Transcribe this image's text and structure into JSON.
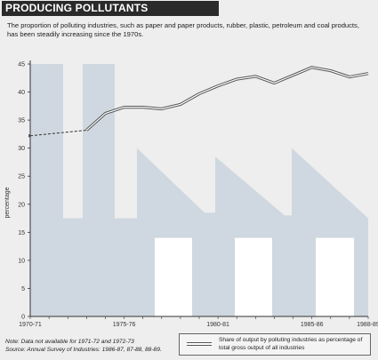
{
  "title": "PRODUCING POLLUTANTS",
  "subtitle": "The proportion of polluting industries, such as paper and paper products, rubber, plastic, petroleum and coal products, has been steadily increasing since the 1970s.",
  "note_lines": [
    "Note: Data not available for 1971-72 and 1972-73",
    "Source: Annual Survey of Industries: 1986-87, 87-88, 88-89."
  ],
  "legend_label": "Share of output by polluting industries as percentage of total gross output of all industries",
  "colors": {
    "background": "#eeeeee",
    "decor_fill": "#cfd8e0",
    "decor_white": "#ffffff",
    "line": "#555555"
  },
  "chart_data": {
    "type": "line",
    "ylabel": "percentage",
    "ylim": [
      0,
      45
    ],
    "yticks": [
      0,
      5,
      10,
      15,
      20,
      25,
      30,
      35,
      40,
      45
    ],
    "xtick_labels": [
      "1970-71",
      "1975-76",
      "1980-81",
      "1985-86",
      "1988-89"
    ],
    "xtick_index": [
      0,
      5,
      10,
      15,
      18
    ],
    "x": [
      "1970-71",
      "1971-72",
      "1972-73",
      "1973-74",
      "1974-75",
      "1975-76",
      "1976-77",
      "1977-78",
      "1978-79",
      "1979-80",
      "1980-81",
      "1981-82",
      "1982-83",
      "1983-84",
      "1984-85",
      "1985-86",
      "1986-87",
      "1987-88",
      "1988-89"
    ],
    "values": [
      32.2,
      null,
      null,
      33.2,
      36.2,
      37.3,
      37.3,
      37.0,
      37.8,
      39.7,
      41.1,
      42.3,
      42.8,
      41.6,
      43.0,
      44.4,
      43.8,
      42.7,
      43.3
    ],
    "gap_dashed": [
      0,
      3
    ]
  }
}
